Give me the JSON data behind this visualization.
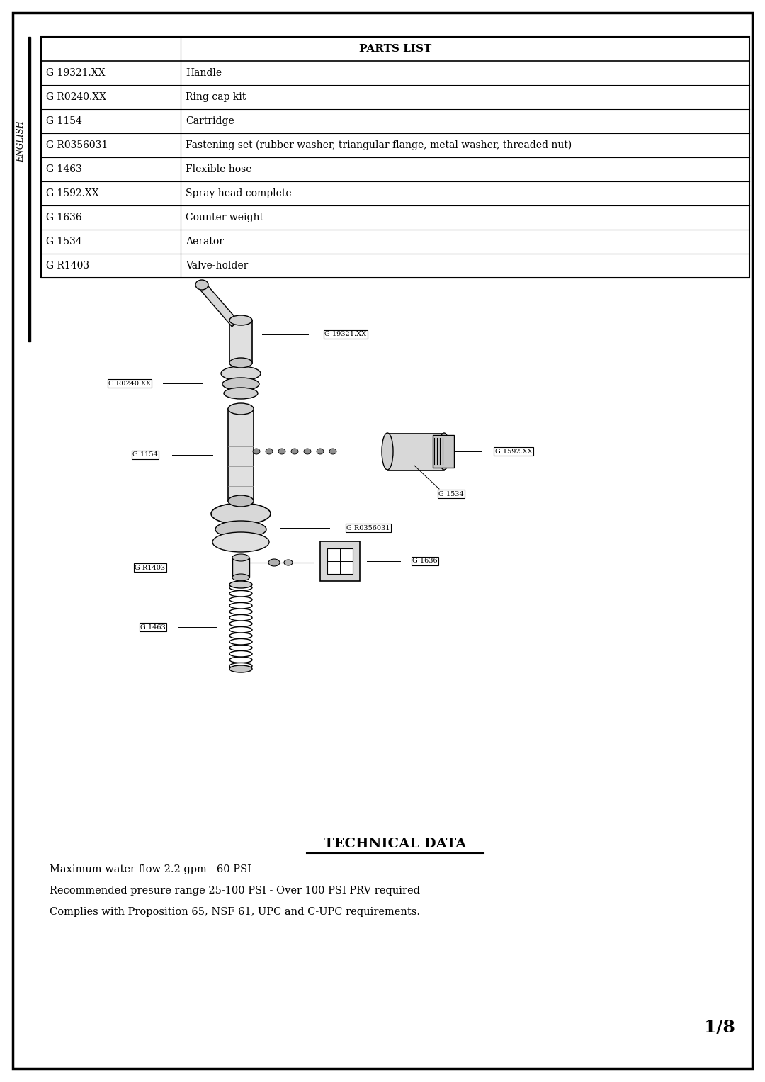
{
  "title": "PARTS LIST",
  "parts": [
    [
      "G 19321.XX",
      "Handle"
    ],
    [
      "G R0240.XX",
      "Ring cap kit"
    ],
    [
      "G 1154",
      "Cartridge"
    ],
    [
      "G R0356031",
      "Fastening set (rubber washer, triangular flange, metal washer, threaded nut)"
    ],
    [
      "G 1463",
      "Flexible hose"
    ],
    [
      "G 1592.XX",
      "Spray head complete"
    ],
    [
      "G 1636",
      "Counter weight"
    ],
    [
      "G 1534",
      "Aerator"
    ],
    [
      "G R1403",
      "Valve-holder"
    ]
  ],
  "technical_data_title": "TECHNICAL DATA",
  "technical_lines": [
    "Maximum water flow 2.2 gpm - 60 PSI",
    "Recommended presure range 25-100 PSI - Over 100 PSI PRV required",
    "Complies with Proposition 65, NSF 61, UPC and C-UPC requirements."
  ],
  "page_number": "1/8",
  "english_label": "ENGLISH",
  "bg_color": "#ffffff",
  "border_color": "#000000",
  "text_color": "#000000"
}
